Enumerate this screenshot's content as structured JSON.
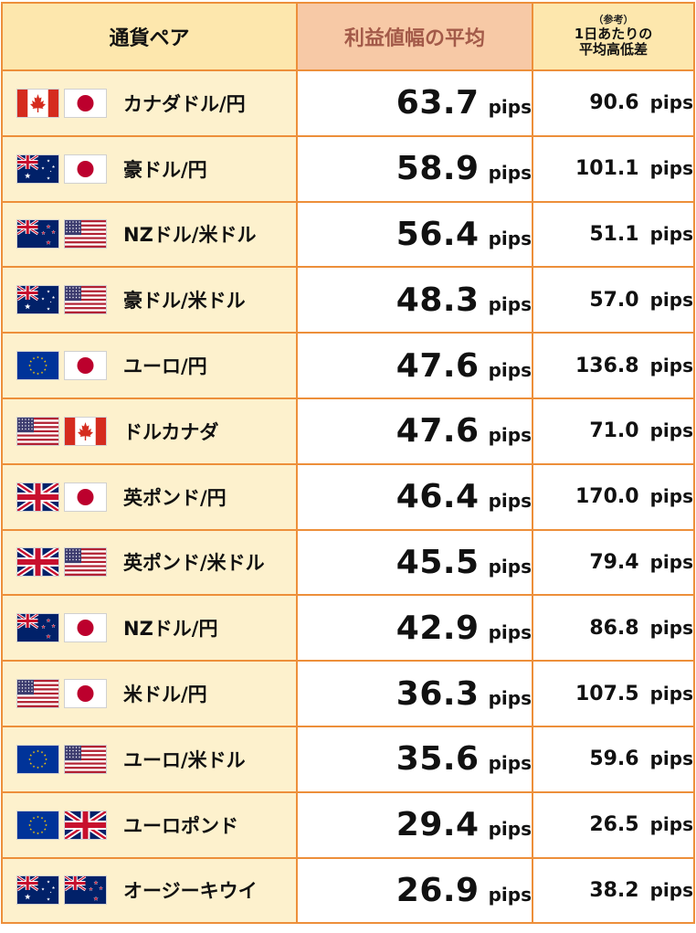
{
  "header": {
    "col_pair": "通貨ペア",
    "col_avg": "利益値幅の平均",
    "col_range_note": "（参考）",
    "col_range_line1": "1日あたりの",
    "col_range_line2": "平均高低差"
  },
  "unit": "pips",
  "rows": [
    {
      "name": "カナダドル/円",
      "avg": "63.7",
      "range": "90.6",
      "flags": [
        "ca",
        "jp"
      ]
    },
    {
      "name": "豪ドル/円",
      "avg": "58.9",
      "range": "101.1",
      "flags": [
        "au",
        "jp"
      ]
    },
    {
      "name": "NZドル/米ドル",
      "avg": "56.4",
      "range": "51.1",
      "flags": [
        "nz",
        "us"
      ]
    },
    {
      "name": "豪ドル/米ドル",
      "avg": "48.3",
      "range": "57.0",
      "flags": [
        "au",
        "us"
      ]
    },
    {
      "name": "ユーロ/円",
      "avg": "47.6",
      "range": "136.8",
      "flags": [
        "eu",
        "jp"
      ]
    },
    {
      "name": "ドルカナダ",
      "avg": "47.6",
      "range": "71.0",
      "flags": [
        "us",
        "ca"
      ]
    },
    {
      "name": "英ポンド/円",
      "avg": "46.4",
      "range": "170.0",
      "flags": [
        "uk",
        "jp"
      ]
    },
    {
      "name": "英ポンド/米ドル",
      "avg": "45.5",
      "range": "79.4",
      "flags": [
        "uk",
        "us"
      ]
    },
    {
      "name": "NZドル/円",
      "avg": "42.9",
      "range": "86.8",
      "flags": [
        "nz",
        "jp"
      ]
    },
    {
      "name": "米ドル/円",
      "avg": "36.3",
      "range": "107.5",
      "flags": [
        "us",
        "jp"
      ]
    },
    {
      "name": "ユーロ/米ドル",
      "avg": "35.6",
      "range": "59.6",
      "flags": [
        "eu",
        "us"
      ]
    },
    {
      "name": "ユーロポンド",
      "avg": "29.4",
      "range": "26.5",
      "flags": [
        "eu",
        "uk"
      ]
    },
    {
      "name": "オージーキウイ",
      "avg": "26.9",
      "range": "38.2",
      "flags": [
        "au",
        "nz"
      ]
    }
  ],
  "colors": {
    "border": "#ed8f3a",
    "header_bg": "#fde7ad",
    "header_avg_bg": "#f7c9a6",
    "header_avg_text": "#a35a49",
    "pair_cell_bg": "#fdf1cd"
  }
}
